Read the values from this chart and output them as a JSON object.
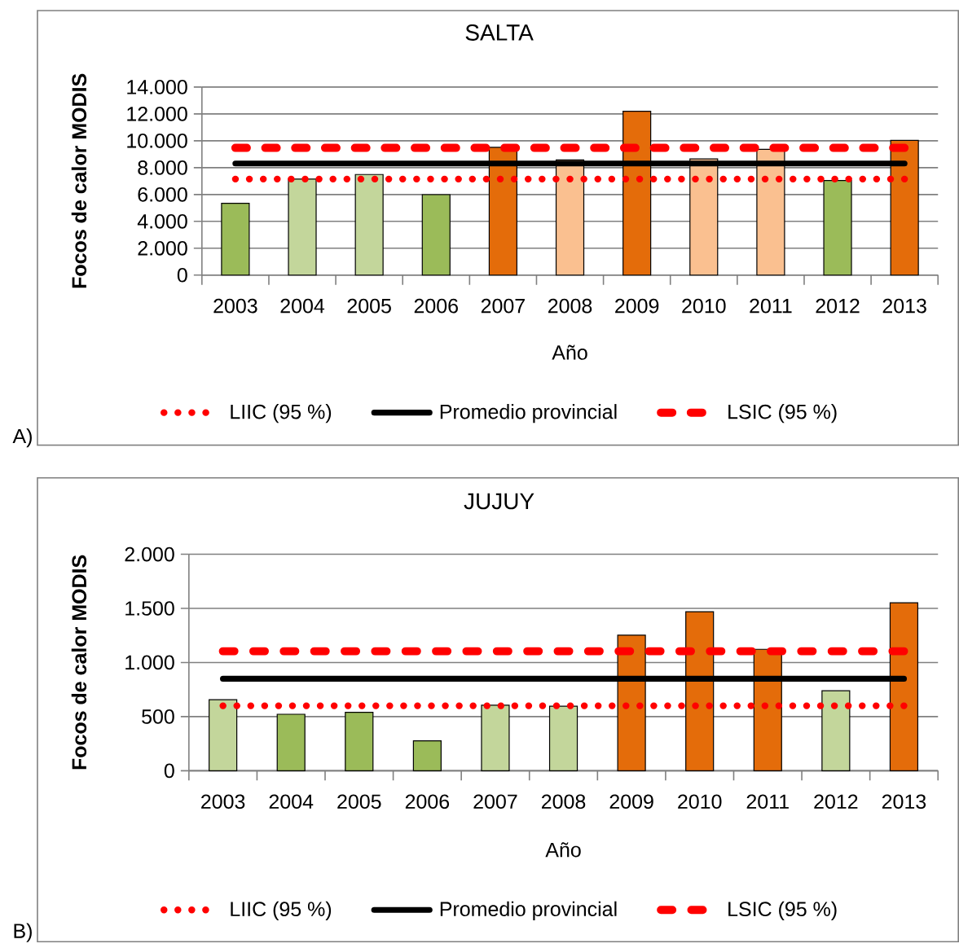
{
  "chart_data": [
    {
      "type": "bar",
      "title": "SALTA",
      "xlabel": "Año",
      "ylabel": "Focos de calor MODIS",
      "categories": [
        "2003",
        "2004",
        "2005",
        "2006",
        "2007",
        "2008",
        "2009",
        "2010",
        "2011",
        "2012",
        "2013"
      ],
      "series": [
        {
          "type": "bar",
          "colors": [
            "#9bbb59",
            "#c3d69b",
            "#c3d69b",
            "#9bbb59",
            "#e46c0a",
            "#fac090",
            "#e46c0a",
            "#fac090",
            "#fac090",
            "#9bbb59",
            "#e46c0a"
          ],
          "values": [
            5350,
            7150,
            7490,
            5990,
            9510,
            8570,
            12200,
            8650,
            9360,
            7040,
            10030
          ]
        },
        {
          "type": "line",
          "name": "LIIC (95 %)",
          "color": "#ff0000",
          "line_style": "dotted",
          "values": [
            7150,
            7150,
            7150,
            7150,
            7150,
            7150,
            7150,
            7150,
            7150,
            7150,
            7150
          ]
        },
        {
          "type": "line",
          "name": "Promedio provincial",
          "color": "#000000",
          "line_style": "solid",
          "values": [
            8310,
            8310,
            8310,
            8310,
            8310,
            8310,
            8310,
            8310,
            8310,
            8310,
            8310
          ]
        },
        {
          "type": "line",
          "name": "LSIC (95 %)",
          "color": "#ff0000",
          "line_style": "dashed",
          "values": [
            9470,
            9470,
            9470,
            9470,
            9470,
            9470,
            9470,
            9470,
            9470,
            9470,
            9470
          ]
        }
      ],
      "ylim": [
        0,
        14000
      ],
      "yticks": [
        0,
        {
          "value": 2000,
          "label": "2.000"
        },
        {
          "value": 4000,
          "label": "4.000"
        },
        {
          "value": 6000,
          "label": "6.000"
        },
        {
          "value": 8000,
          "label": "8.000"
        },
        {
          "value": 10000,
          "label": "10.000"
        },
        {
          "value": 12000,
          "label": "12.000"
        },
        {
          "value": 14000,
          "label": "14.000"
        }
      ],
      "grid": "y",
      "legend": "bottom",
      "annotations": [
        "A)"
      ]
    },
    {
      "type": "bar",
      "title": "JUJUY",
      "xlabel": "Año",
      "ylabel": "Focos de calor MODIS",
      "categories": [
        "2003",
        "2004",
        "2005",
        "2006",
        "2007",
        "2008",
        "2009",
        "2010",
        "2011",
        "2012",
        "2013"
      ],
      "series": [
        {
          "type": "bar",
          "colors": [
            "#c3d69b",
            "#9bbb59",
            "#9bbb59",
            "#9bbb59",
            "#c3d69b",
            "#c3d69b",
            "#e46c0a",
            "#e46c0a",
            "#e46c0a",
            "#c3d69b",
            "#e46c0a"
          ],
          "values": [
            656,
            522,
            540,
            277,
            605,
            596,
            1252,
            1469,
            1122,
            739,
            1552
          ]
        },
        {
          "type": "line",
          "name": "LIIC (95 %)",
          "color": "#ff0000",
          "line_style": "dotted",
          "values": [
            600,
            600,
            600,
            600,
            600,
            600,
            600,
            600,
            600,
            600,
            600
          ]
        },
        {
          "type": "line",
          "name": "Promedio provincial",
          "color": "#000000",
          "line_style": "solid",
          "values": [
            850,
            850,
            850,
            850,
            850,
            850,
            850,
            850,
            850,
            850,
            850
          ]
        },
        {
          "type": "line",
          "name": "LSIC (95 %)",
          "color": "#ff0000",
          "line_style": "dashed",
          "values": [
            1104,
            1104,
            1104,
            1104,
            1104,
            1104,
            1104,
            1104,
            1104,
            1104,
            1104
          ]
        }
      ],
      "ylim": [
        0,
        2000
      ],
      "yticks": [
        0,
        500,
        {
          "value": 1000,
          "label": "1.000"
        },
        {
          "value": 1500,
          "label": "1.500"
        },
        {
          "value": 2000,
          "label": "2.000"
        }
      ],
      "grid": "y",
      "legend": "bottom",
      "annotations": [
        "B)"
      ]
    }
  ]
}
